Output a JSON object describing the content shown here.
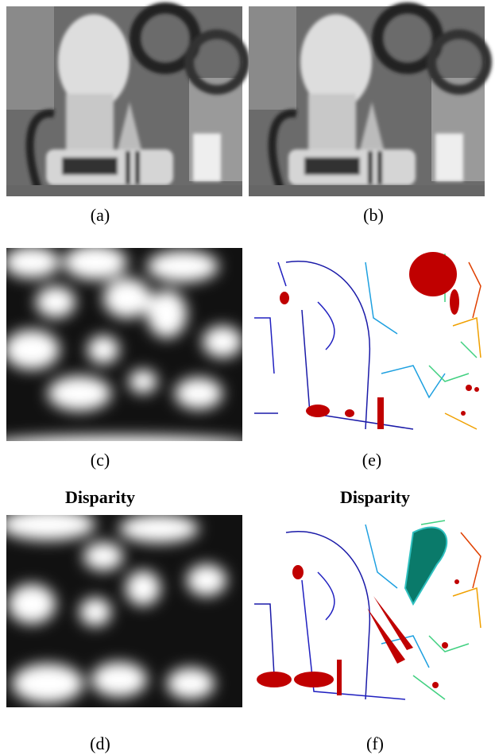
{
  "figure": {
    "row1": [
      "(a)",
      "(b)"
    ],
    "row2": [
      "(c)",
      "(e)"
    ],
    "headings": [
      "Disparity",
      "Disparity"
    ],
    "row3": [
      "(d)",
      "(f)"
    ]
  }
}
